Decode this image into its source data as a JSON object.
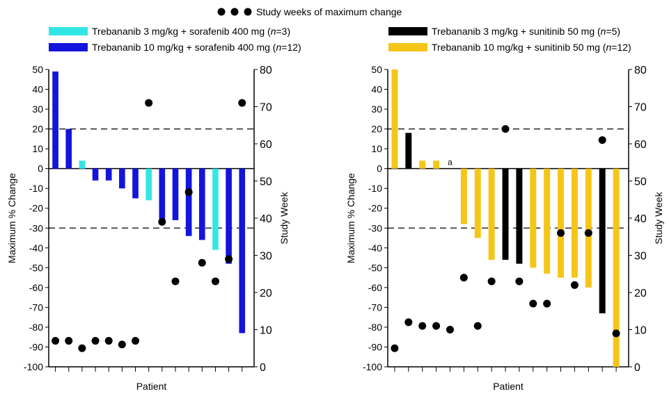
{
  "figure": {
    "top_legend_label": "Study weeks of maximum change",
    "left_legend": [
      {
        "prefix": "Trebananib 3 mg/kg + sorafenib 400 mg (",
        "n_label": "n",
        "suffix": "=3)",
        "color": "#33e6e6"
      },
      {
        "prefix": "Trebananib 10 mg/kg + sorafenib 400 mg (",
        "n_label": "n",
        "suffix": "=12)",
        "color": "#1414dc"
      }
    ],
    "right_legend": [
      {
        "prefix": "Trebananib 3 mg/kg + sunitinib 50 mg (",
        "n_label": "n",
        "suffix": "=5)",
        "color": "#000000"
      },
      {
        "prefix": "Trebananib 10 mg/kg + sunitinib 50 mg (",
        "n_label": "n",
        "suffix": "=12)",
        "color": "#f5c518"
      }
    ]
  },
  "chart_data": [
    {
      "type": "bar",
      "ylabel": "Maximum % Change",
      "y2label": "Study Week",
      "xlabel": "Patient",
      "ylim": [
        -100,
        50
      ],
      "y2lim": [
        0,
        80
      ],
      "yticks": [
        50,
        40,
        30,
        20,
        10,
        0,
        -10,
        -20,
        -30,
        -40,
        -50,
        -60,
        -70,
        -80,
        -90,
        -100
      ],
      "y2ticks": [
        80,
        70,
        60,
        50,
        40,
        30,
        20,
        10,
        0
      ],
      "reference_lines": [
        20,
        -30
      ],
      "bars": [
        {
          "value": 49,
          "group": "Trebananib 10 mg/kg + sorafenib 400 mg",
          "color": "#1414dc"
        },
        {
          "value": 20,
          "group": "Trebananib 10 mg/kg + sorafenib 400 mg",
          "color": "#1414dc"
        },
        {
          "value": 4,
          "group": "Trebananib 3 mg/kg + sorafenib 400 mg",
          "color": "#33e6e6"
        },
        {
          "value": -6,
          "group": "Trebananib 10 mg/kg + sorafenib 400 mg",
          "color": "#1414dc"
        },
        {
          "value": -6,
          "group": "Trebananib 10 mg/kg + sorafenib 400 mg",
          "color": "#1414dc"
        },
        {
          "value": -10,
          "group": "Trebananib 10 mg/kg + sorafenib 400 mg",
          "color": "#1414dc"
        },
        {
          "value": -15,
          "group": "Trebananib 10 mg/kg + sorafenib 400 mg",
          "color": "#1414dc"
        },
        {
          "value": -16,
          "group": "Trebananib 3 mg/kg + sorafenib 400 mg",
          "color": "#33e6e6"
        },
        {
          "value": -26,
          "group": "Trebananib 10 mg/kg + sorafenib 400 mg",
          "color": "#1414dc"
        },
        {
          "value": -26,
          "group": "Trebananib 10 mg/kg + sorafenib 400 mg",
          "color": "#1414dc"
        },
        {
          "value": -34,
          "group": "Trebananib 10 mg/kg + sorafenib 400 mg",
          "color": "#1414dc"
        },
        {
          "value": -36,
          "group": "Trebananib 10 mg/kg + sorafenib 400 mg",
          "color": "#1414dc"
        },
        {
          "value": -41,
          "group": "Trebananib 3 mg/kg + sorafenib 400 mg",
          "color": "#33e6e6"
        },
        {
          "value": -48,
          "group": "Trebananib 10 mg/kg + sorafenib 400 mg",
          "color": "#1414dc"
        },
        {
          "value": -83,
          "group": "Trebananib 10 mg/kg + sorafenib 400 mg",
          "color": "#1414dc"
        }
      ],
      "study_weeks": [
        7,
        7,
        5,
        7,
        7,
        6,
        7,
        71,
        39,
        23,
        47,
        28,
        23,
        29,
        71
      ],
      "bar_annotations": []
    },
    {
      "type": "bar",
      "ylabel": "Maximum % Change",
      "y2label": "Study Week",
      "xlabel": "Patient",
      "ylim": [
        -100,
        50
      ],
      "y2lim": [
        0,
        80
      ],
      "yticks": [
        50,
        40,
        30,
        20,
        10,
        0,
        -10,
        -20,
        -30,
        -40,
        -50,
        -60,
        -70,
        -80,
        -90,
        -100
      ],
      "y2ticks": [
        80,
        70,
        60,
        50,
        40,
        30,
        20,
        10,
        0
      ],
      "reference_lines": [
        20,
        -30
      ],
      "bars": [
        {
          "value": 50,
          "group": "Trebananib 10 mg/kg + sunitinib 50 mg",
          "color": "#f5c518"
        },
        {
          "value": 18,
          "group": "Trebananib 3 mg/kg + sunitinib 50 mg",
          "color": "#000000"
        },
        {
          "value": 4,
          "group": "Trebananib 10 mg/kg + sunitinib 50 mg",
          "color": "#f5c518"
        },
        {
          "value": 4,
          "group": "Trebananib 10 mg/kg + sunitinib 50 mg",
          "color": "#f5c518"
        },
        {
          "value": 0,
          "group": "",
          "color": "#000000"
        },
        {
          "value": -28,
          "group": "Trebananib 10 mg/kg + sunitinib 50 mg",
          "color": "#f5c518"
        },
        {
          "value": -35,
          "group": "Trebananib 10 mg/kg + sunitinib 50 mg",
          "color": "#f5c518"
        },
        {
          "value": -46,
          "group": "Trebananib 10 mg/kg + sunitinib 50 mg",
          "color": "#f5c518"
        },
        {
          "value": -46,
          "group": "Trebananib 3 mg/kg + sunitinib 50 mg",
          "color": "#000000"
        },
        {
          "value": -48,
          "group": "Trebananib 3 mg/kg + sunitinib 50 mg",
          "color": "#000000"
        },
        {
          "value": -50,
          "group": "Trebananib 10 mg/kg + sunitinib 50 mg",
          "color": "#f5c518"
        },
        {
          "value": -53,
          "group": "Trebananib 10 mg/kg + sunitinib 50 mg",
          "color": "#f5c518"
        },
        {
          "value": -55,
          "group": "Trebananib 10 mg/kg + sunitinib 50 mg",
          "color": "#f5c518"
        },
        {
          "value": -55,
          "group": "Trebananib 10 mg/kg + sunitinib 50 mg",
          "color": "#f5c518"
        },
        {
          "value": -60,
          "group": "Trebananib 10 mg/kg + sunitinib 50 mg",
          "color": "#f5c518"
        },
        {
          "value": -73,
          "group": "Trebananib 3 mg/kg + sunitinib 50 mg",
          "color": "#000000"
        },
        {
          "value": -100,
          "group": "Trebananib 10 mg/kg + sunitinib 50 mg",
          "color": "#f5c518"
        }
      ],
      "study_weeks": [
        5,
        12,
        11,
        11,
        10,
        24,
        11,
        23,
        64,
        23,
        17,
        17,
        36,
        22,
        36,
        61,
        9
      ],
      "bar_annotations": [
        {
          "bar_index": 4,
          "text": "a"
        }
      ]
    }
  ]
}
